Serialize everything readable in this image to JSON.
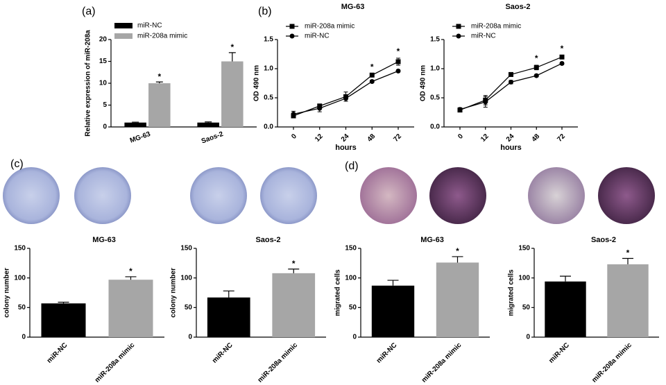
{
  "chart_data": [
    {
      "type": "bar",
      "panel": "(a)",
      "ylabel": "Relative expression of miR-208a",
      "categories": [
        "MG-63",
        "Saos-2"
      ],
      "series": [
        {
          "name": "miR-NC",
          "color": "#000000",
          "values": [
            1,
            1
          ],
          "errors": [
            0.1,
            0.15
          ]
        },
        {
          "name": "miR-208a mimic",
          "color": "#a6a6a6",
          "values": [
            10,
            15
          ],
          "errors": [
            0.3,
            2
          ]
        }
      ],
      "ylim": [
        0,
        20
      ],
      "yticks": [
        0,
        5,
        10,
        15,
        20
      ],
      "annotations": [
        {
          "text": "*",
          "category": "MG-63",
          "series": "miR-208a mimic"
        },
        {
          "text": "*",
          "category": "Saos-2",
          "series": "miR-208a mimic"
        }
      ]
    },
    {
      "type": "line",
      "panel": "(b)",
      "title": "MG-63",
      "xlabel": "hours",
      "ylabel": "OD 490 nm",
      "categories": [
        "0",
        "12",
        "24",
        "48",
        "72"
      ],
      "series": [
        {
          "name": "miR-208a mimic",
          "color": "#000000",
          "marker": "square",
          "values": [
            0.19,
            0.36,
            0.52,
            0.89,
            1.12
          ],
          "errors": [
            0.02,
            0.03,
            0.08,
            0.02,
            0.06
          ]
        },
        {
          "name": "miR-NC",
          "color": "#000000",
          "marker": "circle",
          "values": [
            0.22,
            0.32,
            0.49,
            0.78,
            0.96
          ],
          "errors": [
            0.05,
            0.06,
            0.05,
            0.02,
            0.02
          ]
        }
      ],
      "ylim": [
        0,
        1.5
      ],
      "yticks": [
        {
          "value": 0,
          "label": "0.0"
        },
        0.5,
        {
          "value": 1,
          "label": "1.0"
        },
        1.5
      ],
      "annotations": [
        {
          "text": "*",
          "category": "48"
        },
        {
          "text": "*",
          "category": "72"
        }
      ]
    },
    {
      "type": "line",
      "title": "Saos-2",
      "xlabel": "hours",
      "ylabel": "OD 490 nm",
      "categories": [
        "0",
        "12",
        "24",
        "48",
        "72"
      ],
      "series": [
        {
          "name": "miR-208a mimic",
          "color": "#000000",
          "marker": "square",
          "values": [
            0.29,
            0.46,
            0.9,
            1.02,
            1.2
          ],
          "errors": [
            0.03,
            0.08,
            0.02,
            0.04,
            0.03
          ]
        },
        {
          "name": "miR-NC",
          "color": "#000000",
          "marker": "circle",
          "values": [
            0.3,
            0.43,
            0.77,
            0.88,
            1.09
          ],
          "errors": [
            0.03,
            0.09,
            0.03,
            0.02,
            0.02
          ]
        }
      ],
      "ylim": [
        0,
        1.5
      ],
      "yticks": [
        {
          "value": 0,
          "label": "0.0"
        },
        0.5,
        {
          "value": 1,
          "label": "1.0"
        },
        1.5
      ],
      "annotations": [
        {
          "text": "*",
          "category": "48"
        },
        {
          "text": "*",
          "category": "72"
        }
      ]
    },
    {
      "type": "bar",
      "panel": "(c)",
      "title": "MG-63",
      "ylabel": "colony number",
      "categories": [
        "miR-NC",
        "miR-208a mimic"
      ],
      "values": [
        57,
        97
      ],
      "errors": [
        2,
        5
      ],
      "colors": [
        "#000000",
        "#a6a6a6"
      ],
      "ylim": [
        0,
        150
      ],
      "yticks": [
        0,
        50,
        100,
        150
      ],
      "annotations": [
        {
          "text": "*",
          "category": "miR-208a mimic"
        }
      ]
    },
    {
      "type": "bar",
      "title": "Saos-2",
      "ylabel": "colony number",
      "categories": [
        "miR-NC",
        "miR-208a mimic"
      ],
      "values": [
        67,
        108
      ],
      "errors": [
        11,
        7
      ],
      "colors": [
        "#000000",
        "#a6a6a6"
      ],
      "ylim": [
        0,
        150
      ],
      "yticks": [
        0,
        50,
        100,
        150
      ],
      "annotations": [
        {
          "text": "*",
          "category": "miR-208a mimic"
        }
      ]
    },
    {
      "type": "bar",
      "panel": "(d)",
      "title": "MG-63",
      "ylabel": "migrated cells",
      "categories": [
        "miR-NC",
        "miR-208a mimic"
      ],
      "values": [
        87,
        126
      ],
      "errors": [
        9,
        10
      ],
      "colors": [
        "#000000",
        "#a6a6a6"
      ],
      "ylim": [
        0,
        150
      ],
      "yticks": [
        0,
        50,
        100,
        150
      ],
      "annotations": [
        {
          "text": "*",
          "category": "miR-208a mimic"
        }
      ]
    },
    {
      "type": "bar",
      "title": "Saos-2",
      "ylabel": "migrated cells",
      "categories": [
        "miR-NC",
        "miR-208a mimic"
      ],
      "values": [
        94,
        123
      ],
      "errors": [
        9,
        10
      ],
      "colors": [
        "#000000",
        "#a6a6a6"
      ],
      "ylim": [
        0,
        150
      ],
      "yticks": [
        0,
        50,
        100,
        150
      ],
      "annotations": [
        {
          "text": "*",
          "category": "miR-208a mimic"
        }
      ]
    }
  ]
}
